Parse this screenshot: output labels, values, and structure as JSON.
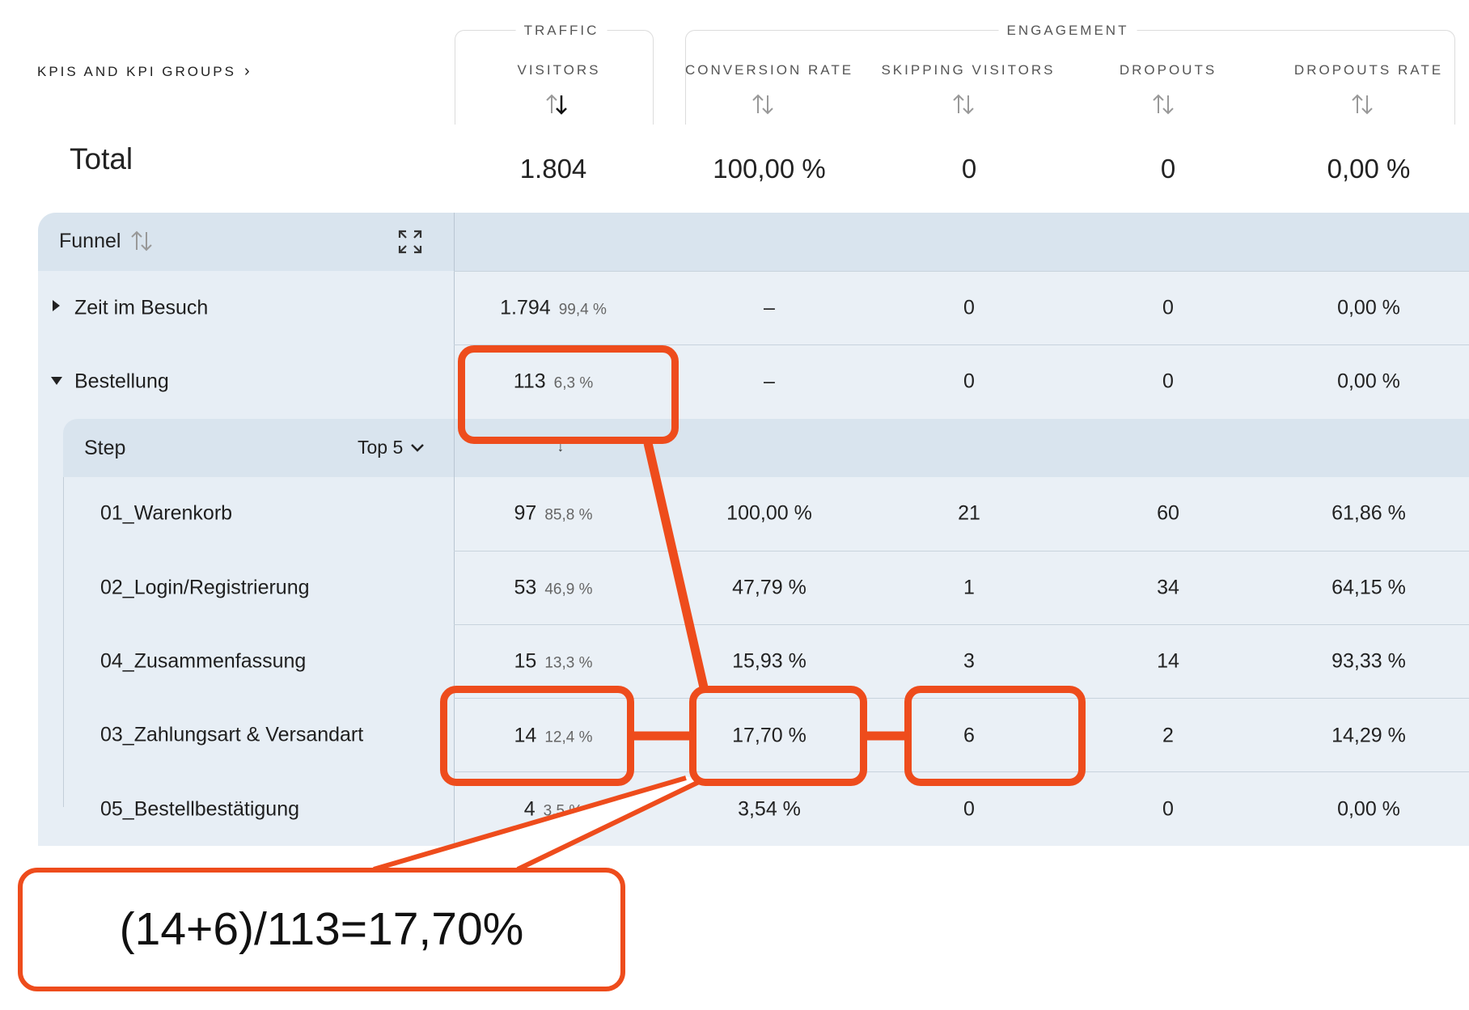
{
  "header": {
    "kpi_groups_label": "KPIS AND KPI GROUPS",
    "groups": {
      "traffic": "TRAFFIC",
      "engagement": "ENGAGEMENT"
    },
    "columns": [
      "VISITORS",
      "CONVERSION RATE",
      "SKIPPING VISITORS",
      "DROPOUTS",
      "DROPOUTS RATE"
    ]
  },
  "total": {
    "label": "Total",
    "values": [
      "1.804",
      "100,00 %",
      "0",
      "0",
      "0,00 %"
    ]
  },
  "funnel": {
    "label": "Funnel",
    "rows": [
      {
        "label": "Zeit im Besuch",
        "visitors": "1.794",
        "visitors_pct": "99,4 %",
        "conversion": "–",
        "skipping": "0",
        "dropouts": "0",
        "dropouts_rate": "0,00 %"
      },
      {
        "label": "Bestellung",
        "visitors": "113",
        "visitors_pct": "6,3 %",
        "conversion": "–",
        "skipping": "0",
        "dropouts": "0",
        "dropouts_rate": "0,00 %"
      }
    ]
  },
  "step": {
    "label": "Step",
    "top_label": "Top 5",
    "rows": [
      {
        "label": "01_Warenkorb",
        "visitors": "97",
        "visitors_pct": "85,8 %",
        "conversion": "100,00 %",
        "skipping": "21",
        "dropouts": "60",
        "dropouts_rate": "61,86 %"
      },
      {
        "label": "02_Login/Registrierung",
        "visitors": "53",
        "visitors_pct": "46,9 %",
        "conversion": "47,79 %",
        "skipping": "1",
        "dropouts": "34",
        "dropouts_rate": "64,15 %"
      },
      {
        "label": "04_Zusammenfassung",
        "visitors": "15",
        "visitors_pct": "13,3 %",
        "conversion": "15,93 %",
        "skipping": "3",
        "dropouts": "14",
        "dropouts_rate": "93,33 %"
      },
      {
        "label": "03_Zahlungsart & Versandart",
        "visitors": "14",
        "visitors_pct": "12,4 %",
        "conversion": "17,70 %",
        "skipping": "6",
        "dropouts": "2",
        "dropouts_rate": "14,29 %"
      },
      {
        "label": "05_Bestellbestätigung",
        "visitors": "4",
        "visitors_pct": "3,5 %",
        "conversion": "3,54 %",
        "skipping": "0",
        "dropouts": "0",
        "dropouts_rate": "0,00 %"
      }
    ]
  },
  "annotation": {
    "formula": "(14+6)/113=17,70%"
  },
  "colors": {
    "highlight": "#ee4c1c",
    "panel": "#e7eef5",
    "band": "#d9e4ee"
  },
  "icons": {
    "sort": "sort-arrows-icon",
    "expand": "expand-icon",
    "chevron": "chevron-down-icon",
    "caret_right": "caret-right-icon",
    "caret_down": "caret-down-icon"
  }
}
